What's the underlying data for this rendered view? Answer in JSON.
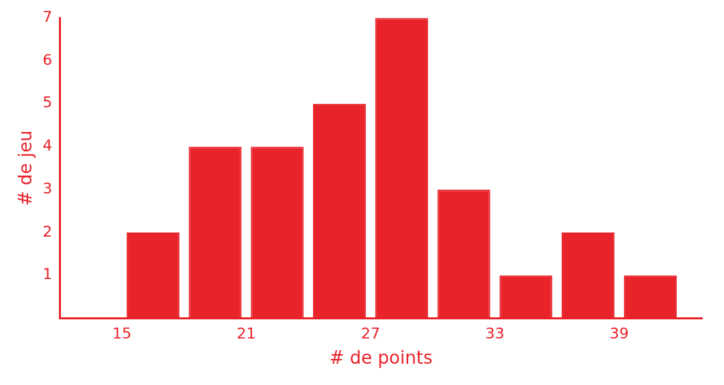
{
  "chart_data": {
    "type": "histogram",
    "x_label": "# de points",
    "y_label": "# de jeu",
    "bins": [
      15,
      18,
      21,
      24,
      27,
      30,
      33,
      36,
      39,
      42
    ],
    "values": [
      2,
      4,
      4,
      5,
      7,
      3,
      1,
      2,
      1
    ],
    "color": "#e8232a",
    "xlim": [
      12,
      43
    ],
    "xticks": [
      15,
      21,
      27,
      33,
      39
    ],
    "ylim": [
      0,
      7
    ],
    "yticks": [
      1,
      2,
      3,
      4,
      5,
      6,
      7
    ],
    "grid": false
  }
}
